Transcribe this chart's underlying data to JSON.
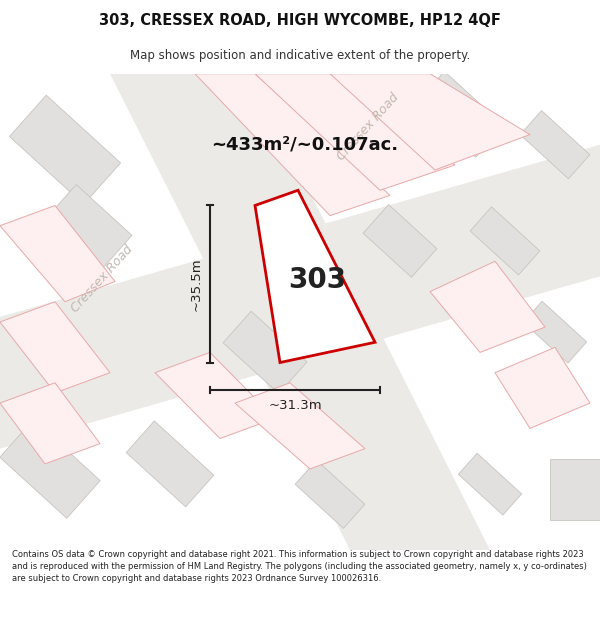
{
  "title_line1": "303, CRESSEX ROAD, HIGH WYCOMBE, HP12 4QF",
  "title_line2": "Map shows position and indicative extent of the property.",
  "footer_text": "Contains OS data © Crown copyright and database right 2021. This information is subject to Crown copyright and database rights 2023 and is reproduced with the permission of HM Land Registry. The polygons (including the associated geometry, namely x, y co-ordinates) are subject to Crown copyright and database rights 2023 Ordnance Survey 100026316.",
  "area_label": "~433m²/~0.107ac.",
  "number_label": "303",
  "dim_h_label": "~35.5m",
  "dim_w_label": "~31.3m",
  "map_bg": "#f0efed",
  "plot_outline": "#cc0000",
  "dim_color": "#222222",
  "road_label_color": "#c0b8b0",
  "building_fill": "#e2e0de",
  "building_stroke": "#c8c4c0",
  "road_fill": "#e8e6e3",
  "parcel_fill": "#fef0f0",
  "parcel_stroke": "#e8a8a8"
}
